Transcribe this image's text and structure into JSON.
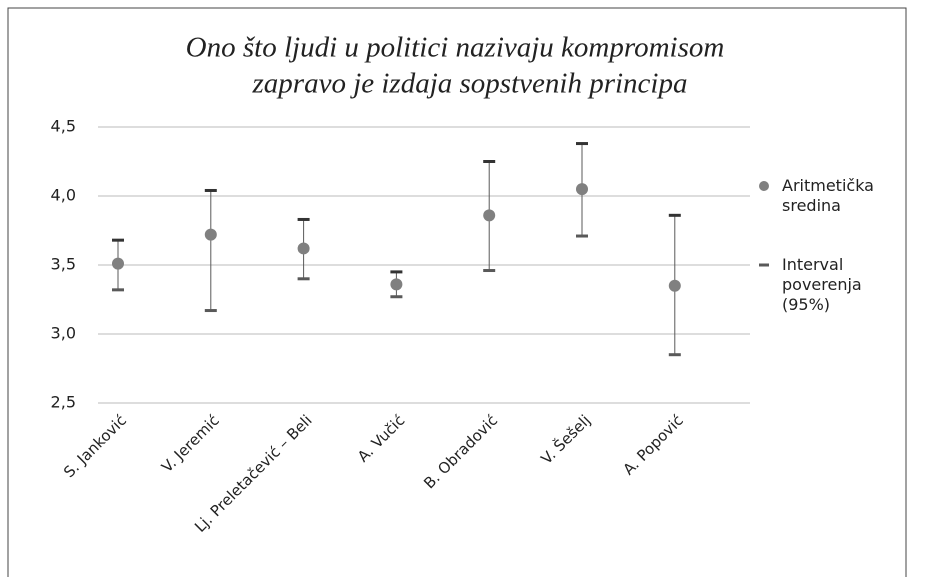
{
  "chart_data": {
    "type": "errorbar",
    "title": [
      "Ono što ljudi u politici nazivaju kompromisom",
      "zapravo je izdaja sopstvenih principa"
    ],
    "categories": [
      "S. Janković",
      "V. Jeremić",
      "Lj. Preletačević – Beli",
      "A. Vučić",
      "B. Obradović",
      "V. Šešelj",
      "A. Popović"
    ],
    "series": [
      {
        "name": "Aritmetička sredina",
        "color": "#808080",
        "values": [
          3.51,
          3.72,
          3.62,
          3.36,
          3.86,
          4.05,
          3.35
        ]
      },
      {
        "name": "Interval poverenja (95%)",
        "color": "#595959",
        "low": [
          3.32,
          3.17,
          3.4,
          3.27,
          3.46,
          3.71,
          2.85
        ],
        "high": [
          3.68,
          4.04,
          3.83,
          3.45,
          4.25,
          4.38,
          3.86
        ]
      }
    ],
    "ylim": [
      2.5,
      4.5
    ],
    "yticks": [
      {
        "value": 2.5,
        "label": "2,5"
      },
      {
        "value": 3.0,
        "label": "3,0"
      },
      {
        "value": 3.5,
        "label": "3,5"
      },
      {
        "value": 4.0,
        "label": "4,0"
      },
      {
        "value": 4.5,
        "label": "4,5"
      }
    ],
    "grid": true,
    "legend": "right"
  }
}
